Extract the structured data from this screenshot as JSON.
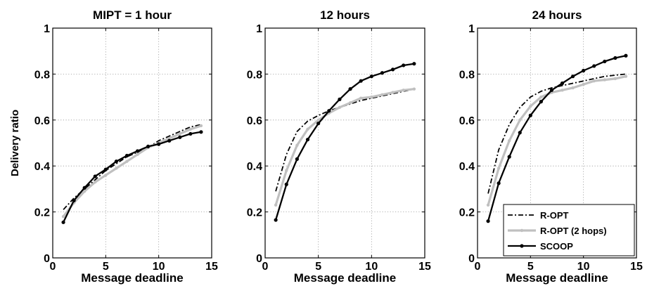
{
  "chart_data": [
    {
      "type": "line",
      "title": "MIPT = 1 hour",
      "xlabel": "Message deadline",
      "ylabel": "Delivery ratio",
      "xlim": [
        0,
        15
      ],
      "ylim": [
        0,
        1
      ],
      "xticks": [
        0,
        5,
        10,
        15
      ],
      "yticks": [
        0,
        0.2,
        0.4,
        0.6,
        0.8,
        1
      ],
      "ytick_labels": [
        "0",
        "0.2",
        "0.4",
        "0.6",
        "0.8",
        "1"
      ],
      "grid": true,
      "series": [
        {
          "name": "R-OPT",
          "color": "#000000",
          "style": "dashdot",
          "x": [
            1,
            2,
            3,
            4,
            5,
            6,
            7,
            8,
            9,
            10,
            11,
            12,
            13,
            14
          ],
          "y": [
            0.21,
            0.26,
            0.3,
            0.34,
            0.38,
            0.41,
            0.44,
            0.46,
            0.48,
            0.51,
            0.53,
            0.55,
            0.57,
            0.58
          ]
        },
        {
          "name": "R-OPT (2 hops)",
          "color": "#c0c0c0",
          "style": "solid-marker",
          "x": [
            1,
            2,
            3,
            4,
            5,
            6,
            7,
            8,
            9,
            10,
            11,
            12,
            13,
            14
          ],
          "y": [
            0.18,
            0.24,
            0.29,
            0.33,
            0.36,
            0.39,
            0.42,
            0.45,
            0.48,
            0.5,
            0.52,
            0.54,
            0.56,
            0.575
          ]
        },
        {
          "name": "SCOOP",
          "color": "#000000",
          "style": "solid-marker",
          "x": [
            1,
            2,
            3,
            4,
            5,
            6,
            7,
            8,
            9,
            10,
            11,
            12,
            13,
            14
          ],
          "y": [
            0.155,
            0.25,
            0.305,
            0.355,
            0.385,
            0.42,
            0.445,
            0.465,
            0.485,
            0.495,
            0.51,
            0.525,
            0.54,
            0.548
          ]
        }
      ]
    },
    {
      "type": "line",
      "title": "12 hours",
      "xlabel": "Message deadline",
      "ylabel": "",
      "xlim": [
        0,
        15
      ],
      "ylim": [
        0,
        1
      ],
      "xticks": [
        0,
        5,
        10,
        15
      ],
      "yticks": [
        0,
        0.2,
        0.4,
        0.6,
        0.8,
        1
      ],
      "ytick_labels": [
        "0",
        "0.2",
        "0.4",
        "0.6",
        "0.8",
        "1"
      ],
      "grid": true,
      "series": [
        {
          "name": "R-OPT",
          "color": "#000000",
          "style": "dashdot",
          "x": [
            1,
            2,
            3,
            4,
            5,
            6,
            7,
            8,
            9,
            10,
            11,
            12,
            13,
            14
          ],
          "y": [
            0.29,
            0.45,
            0.55,
            0.595,
            0.62,
            0.64,
            0.655,
            0.67,
            0.685,
            0.695,
            0.705,
            0.715,
            0.725,
            0.735
          ]
        },
        {
          "name": "R-OPT (2 hops)",
          "color": "#c0c0c0",
          "style": "solid-marker",
          "x": [
            1,
            2,
            3,
            4,
            5,
            6,
            7,
            8,
            9,
            10,
            11,
            12,
            13,
            14
          ],
          "y": [
            0.23,
            0.38,
            0.49,
            0.56,
            0.6,
            0.63,
            0.655,
            0.675,
            0.695,
            0.7,
            0.71,
            0.72,
            0.73,
            0.735
          ]
        },
        {
          "name": "SCOOP",
          "color": "#000000",
          "style": "solid-marker",
          "x": [
            1,
            2,
            3,
            4,
            5,
            6,
            7,
            8,
            9,
            10,
            11,
            12,
            13,
            14
          ],
          "y": [
            0.165,
            0.32,
            0.43,
            0.515,
            0.585,
            0.64,
            0.69,
            0.735,
            0.77,
            0.79,
            0.805,
            0.82,
            0.838,
            0.845
          ]
        }
      ]
    },
    {
      "type": "line",
      "title": "24 hours",
      "xlabel": "Message deadline",
      "ylabel": "",
      "xlim": [
        0,
        15
      ],
      "ylim": [
        0,
        1
      ],
      "xticks": [
        0,
        5,
        10,
        15
      ],
      "yticks": [
        0,
        0.2,
        0.4,
        0.6,
        0.8,
        1
      ],
      "ytick_labels": [
        "0",
        "0.2",
        "0.4",
        "0.6",
        "0.8",
        "1"
      ],
      "grid": true,
      "legend": {
        "position": "lower-right",
        "entries": [
          "R-OPT",
          "R-OPT (2 hops)",
          "SCOOP"
        ]
      },
      "series": [
        {
          "name": "R-OPT",
          "color": "#000000",
          "style": "dashdot",
          "x": [
            1,
            2,
            3,
            4,
            5,
            6,
            7,
            8,
            9,
            10,
            11,
            12,
            13,
            14
          ],
          "y": [
            0.28,
            0.47,
            0.58,
            0.655,
            0.7,
            0.725,
            0.74,
            0.75,
            0.76,
            0.77,
            0.78,
            0.79,
            0.795,
            0.8
          ]
        },
        {
          "name": "R-OPT (2 hops)",
          "color": "#c0c0c0",
          "style": "solid-marker",
          "x": [
            1,
            2,
            3,
            4,
            5,
            6,
            7,
            8,
            9,
            10,
            11,
            12,
            13,
            14
          ],
          "y": [
            0.23,
            0.39,
            0.51,
            0.6,
            0.66,
            0.7,
            0.72,
            0.73,
            0.74,
            0.755,
            0.77,
            0.775,
            0.78,
            0.79
          ]
        },
        {
          "name": "SCOOP",
          "color": "#000000",
          "style": "solid-marker",
          "x": [
            1,
            2,
            3,
            4,
            5,
            6,
            7,
            8,
            9,
            10,
            11,
            12,
            13,
            14
          ],
          "y": [
            0.16,
            0.325,
            0.44,
            0.545,
            0.62,
            0.68,
            0.73,
            0.76,
            0.79,
            0.815,
            0.835,
            0.855,
            0.87,
            0.88
          ]
        }
      ]
    }
  ]
}
